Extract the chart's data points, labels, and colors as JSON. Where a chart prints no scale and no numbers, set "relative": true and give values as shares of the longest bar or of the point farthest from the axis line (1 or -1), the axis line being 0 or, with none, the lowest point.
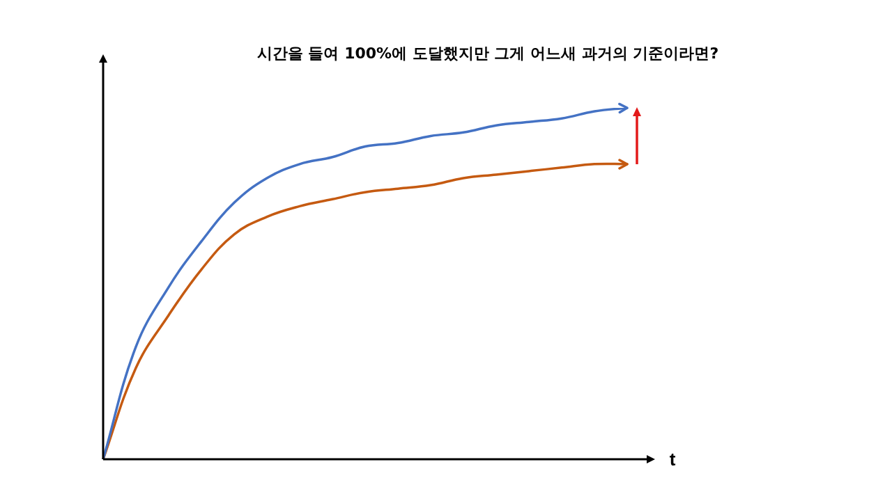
{
  "chart_data": {
    "type": "line",
    "title": "시간을 들여 100%에 도달했지만 그게 어느새 과거의 기준이라면?",
    "xlabel": "t",
    "relative": true,
    "legend": false,
    "marker": "none",
    "line_style": "solid",
    "categories": [
      null,
      null,
      null,
      null,
      null,
      null,
      null,
      null,
      null,
      null,
      null,
      null,
      null,
      null,
      null,
      null,
      null
    ],
    "series": [
      {
        "color": "#4472c4",
        "values": [
          0,
          0.32,
          0.49,
          0.62,
          0.73,
          0.8,
          0.84,
          0.86,
          0.89,
          0.9,
          0.92,
          0.93,
          0.95,
          0.96,
          0.97,
          0.99,
          1
        ]
      },
      {
        "color": "#c55a11",
        "values": [
          0,
          0.26,
          0.41,
          0.54,
          0.64,
          0.69,
          0.72,
          0.74,
          0.76,
          0.77,
          0.78,
          0.8,
          0.81,
          0.82,
          0.83,
          0.84,
          0.84
        ]
      }
    ]
  }
}
